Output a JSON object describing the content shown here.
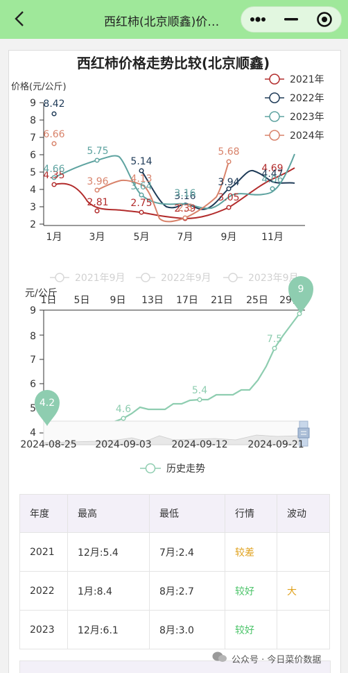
{
  "header": {
    "title": "西红柿(北京顺鑫)价…",
    "colors": {
      "bar": "#9fe89a"
    },
    "icons": [
      "back-arrow-icon",
      "more-dots-icon",
      "minimize-icon",
      "close-target-icon"
    ]
  },
  "chart1": {
    "title": "西红柿价格走势比较(北京顺鑫)",
    "ylabel": "价格(元/公斤)",
    "legend": [
      "2021年",
      "2022年",
      "2023年",
      "2024年"
    ],
    "yticks": [
      "9",
      "8",
      "7",
      "6",
      "5",
      "4",
      "3",
      "2"
    ],
    "xticks": [
      "1月",
      "3月",
      "5月",
      "7月",
      "9月",
      "11月"
    ],
    "labels": {
      "l2021_1": "4.35",
      "l2021_3": "2.81",
      "l2021_5": "2.75",
      "l2021_7": "2.39",
      "l2021_9": "3.05",
      "l2021_11": "4.69",
      "l2022_1": "8.42",
      "l2022_5": "5.14",
      "l2022_7": "3.16",
      "l2022_9": "3.94",
      "l2022_11": "4.47",
      "l2023_1": "4.66",
      "l2023_3": "5.75",
      "l2023_5": "3.64",
      "l2023_7": "3.16",
      "l2023_11": "4.06",
      "l2024_1": "6.66",
      "l2024_3": "3.96",
      "l2024_5": "4.13",
      "l2024_7": "2.5",
      "l2024_9": "5.68"
    }
  },
  "chart2": {
    "legend": [
      "2021年9月",
      "2022年9月",
      "2023年9月"
    ],
    "ylabel": "元/公斤",
    "day_ticks": [
      "1日",
      "5日",
      "9日",
      "13日",
      "17日",
      "21日",
      "25日",
      "29日"
    ],
    "yticks": [
      "9",
      "8",
      "7",
      "6",
      "5",
      "4"
    ],
    "date_ticks": [
      "2024-08-25",
      "2024-09-03",
      "2024-09-12",
      "2024-09-21"
    ],
    "labels": {
      "p1": "4.2",
      "p2": "4.6",
      "p3": "5.4",
      "p4": "7.5"
    },
    "pins": {
      "min": "4.2",
      "max": "9"
    },
    "series_name": "历史走势"
  },
  "chart_data": [
    {
      "type": "line",
      "title": "西红柿价格走势比较(北京顺鑫)",
      "ylabel": "价格(元/公斤)",
      "x": [
        "1月",
        "3月",
        "5月",
        "7月",
        "9月",
        "11月"
      ],
      "ylim": [
        2,
        9
      ],
      "series": [
        {
          "name": "2021年",
          "values": [
            4.35,
            2.81,
            2.75,
            2.39,
            3.05,
            4.69
          ]
        },
        {
          "name": "2022年",
          "values": [
            8.42,
            null,
            5.14,
            3.16,
            3.94,
            4.47
          ]
        },
        {
          "name": "2023年",
          "values": [
            4.66,
            5.75,
            3.64,
            3.16,
            null,
            4.06
          ]
        },
        {
          "name": "2024年",
          "values": [
            6.66,
            3.96,
            4.13,
            2.5,
            5.68,
            null
          ]
        }
      ],
      "legend_position": "top-right"
    },
    {
      "type": "line",
      "ylabel": "元/公斤",
      "ylim": [
        4,
        9
      ],
      "series": [
        {
          "name": "历史走势",
          "x": [
            "2024-08-25",
            "2024-09-03",
            "2024-09-12",
            "2024-09-21"
          ],
          "values": [
            4.2,
            4.6,
            5.4,
            7.5
          ]
        }
      ],
      "annotations": {
        "min": 4.2,
        "max": 9
      }
    }
  ],
  "table": {
    "headers": [
      "年度",
      "最高",
      "最低",
      "行情",
      "波动"
    ],
    "rows": [
      {
        "year": "2021",
        "high": "12月:5.4",
        "low": "7月:2.4",
        "trend": "较差",
        "vol": ""
      },
      {
        "year": "2022",
        "high": "1月:8.4",
        "low": "8月:2.7",
        "trend": "较好",
        "vol": "大"
      },
      {
        "year": "2023",
        "high": "12月:6.1",
        "low": "8月:3.0",
        "trend": "较好",
        "vol": ""
      }
    ]
  },
  "watermark": "公众号 · 今日菜价数据"
}
